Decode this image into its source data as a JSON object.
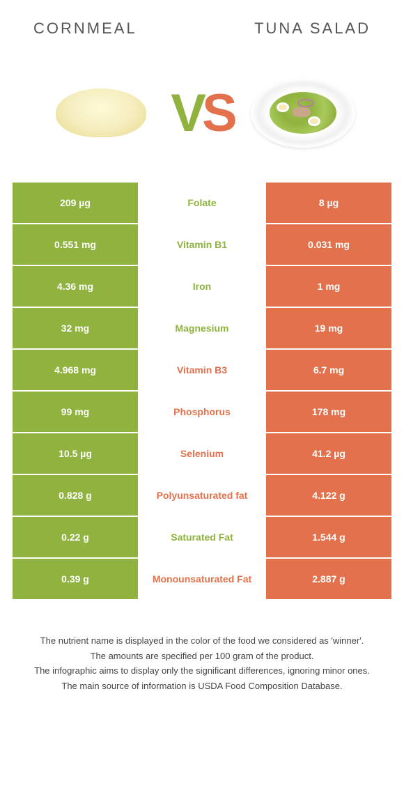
{
  "header": {
    "left_title": "CORNMEAL",
    "right_title": "TUNA SALAD"
  },
  "hero": {
    "vs_v": "V",
    "vs_s": "S"
  },
  "colors": {
    "green": "#8fb33e",
    "orange": "#e2714c",
    "text": "#333333",
    "background": "#ffffff"
  },
  "rows": [
    {
      "left": "209 µg",
      "label": "Folate",
      "right": "8 µg",
      "winner": "green"
    },
    {
      "left": "0.551 mg",
      "label": "Vitamin B1",
      "right": "0.031 mg",
      "winner": "green"
    },
    {
      "left": "4.36 mg",
      "label": "Iron",
      "right": "1 mg",
      "winner": "green"
    },
    {
      "left": "32 mg",
      "label": "Magnesium",
      "right": "19 mg",
      "winner": "green"
    },
    {
      "left": "4.968 mg",
      "label": "Vitamin B3",
      "right": "6.7 mg",
      "winner": "orange"
    },
    {
      "left": "99 mg",
      "label": "Phosphorus",
      "right": "178 mg",
      "winner": "orange"
    },
    {
      "left": "10.5 µg",
      "label": "Selenium",
      "right": "41.2 µg",
      "winner": "orange"
    },
    {
      "left": "0.828 g",
      "label": "Polyunsaturated fat",
      "right": "4.122 g",
      "winner": "orange"
    },
    {
      "left": "0.22 g",
      "label": "Saturated Fat",
      "right": "1.544 g",
      "winner": "green"
    },
    {
      "left": "0.39 g",
      "label": "Monounsaturated Fat",
      "right": "2.887 g",
      "winner": "orange"
    }
  ],
  "footnotes": [
    "The nutrient name is displayed in the color of the food we considered as 'winner'.",
    "The amounts are specified per 100 gram of the product.",
    "The infographic aims to display only the significant differences, ignoring minor ones.",
    "The main source of information is USDA Food Composition Database."
  ]
}
